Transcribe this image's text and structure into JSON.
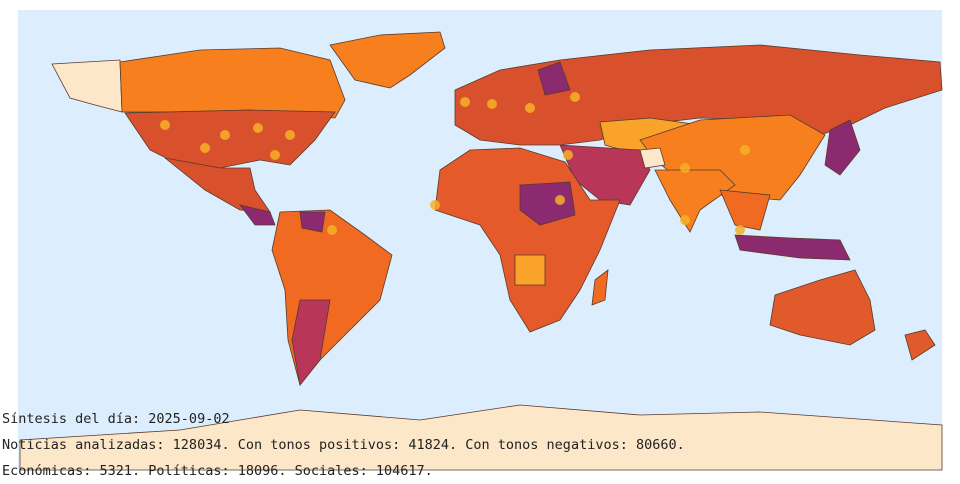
{
  "summary": {
    "title": "Síntesis del día: 2025-09-02",
    "news": "Noticias analizadas: 128034. Con tonos positivos: 41824. Con tonos negativos: 80660.",
    "categories": "Económicas: 5321. Políticas: 18096. Sociales: 104617."
  }
}
